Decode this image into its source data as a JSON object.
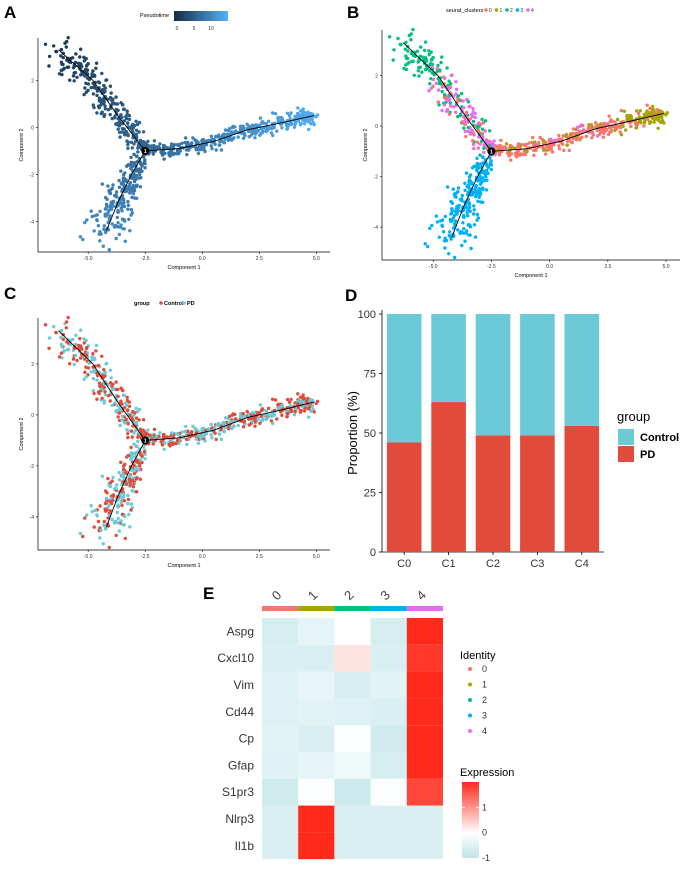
{
  "colors": {
    "pseudotime_low": "#132b43",
    "pseudotime_high": "#56b1f7",
    "clusters": [
      "#f8766d",
      "#a3a500",
      "#00bf7d",
      "#00b0f6",
      "#e76bf3"
    ],
    "control": "#6ccad6",
    "pd": "#e04b3b",
    "heat_low": "#bde3e8",
    "heat_mid": "#ffffff",
    "heat_high": "#ff2a1a"
  },
  "chart_data": [
    {
      "id": "A",
      "type": "scatter",
      "panel_label": "A",
      "title": "",
      "xlabel": "Component 1",
      "ylabel": "Component 2",
      "xlim": [
        -7.2,
        5.6
      ],
      "ylim": [
        -5.3,
        3.8
      ],
      "xticks": [
        -5.0,
        -2.5,
        0.0,
        2.5,
        5.0
      ],
      "xtick_labels": [
        "-5.0",
        "-2.5",
        "0.0",
        "2.5",
        "5.0"
      ],
      "yticks": [
        -4,
        -2,
        0,
        2
      ],
      "ytick_labels": [
        "-4",
        "-2",
        "0",
        "2"
      ],
      "trajectory_branches": [
        [
          [
            -6.3,
            3.3
          ],
          [
            -4.8,
            2.0
          ],
          [
            -3.7,
            0.5
          ],
          [
            -2.5,
            -1.0
          ]
        ],
        [
          [
            -2.5,
            -1.0
          ],
          [
            -1.0,
            -0.9
          ],
          [
            0.5,
            -0.6
          ],
          [
            2.0,
            -0.1
          ],
          [
            3.5,
            0.2
          ],
          [
            4.9,
            0.5
          ]
        ],
        [
          [
            -2.5,
            -1.0
          ],
          [
            -3.1,
            -2.0
          ],
          [
            -3.7,
            -3.2
          ],
          [
            -4.2,
            -4.4
          ]
        ]
      ],
      "branch_node": {
        "x": -2.5,
        "y": -1.0,
        "label": "1"
      },
      "color_by": "pseudotime",
      "legend": {
        "title": "Pseudotime",
        "tick_labels": [
          "0",
          "5",
          "10"
        ],
        "position": "top"
      }
    },
    {
      "id": "B",
      "type": "scatter",
      "panel_label": "B",
      "title": "",
      "xlabel": "Component 1",
      "ylabel": "Component 2",
      "xlim": [
        -7.2,
        5.6
      ],
      "ylim": [
        -5.3,
        3.8
      ],
      "xticks": [
        -5.0,
        -2.5,
        0.0,
        2.5,
        5.0
      ],
      "xtick_labels": [
        "-5.0",
        "-2.5",
        "0.0",
        "2.5",
        "5.0"
      ],
      "yticks": [
        -4,
        -2,
        0,
        2
      ],
      "ytick_labels": [
        "-4",
        "-2",
        "0",
        "2"
      ],
      "branch_node": {
        "x": -2.5,
        "y": -1.0,
        "label": "1"
      },
      "color_by": "seurat_clusters",
      "legend": {
        "title": "seurat_clusters",
        "entries": [
          "0",
          "1",
          "2",
          "3",
          "4"
        ],
        "position": "top"
      }
    },
    {
      "id": "C",
      "type": "scatter",
      "panel_label": "C",
      "title": "",
      "xlabel": "Component 1",
      "ylabel": "Component 2",
      "xlim": [
        -7.2,
        5.6
      ],
      "ylim": [
        -5.3,
        3.8
      ],
      "xticks": [
        -5.0,
        -2.5,
        0.0,
        2.5,
        5.0
      ],
      "xtick_labels": [
        "-5.0",
        "-2.5",
        "0.0",
        "2.5",
        "5.0"
      ],
      "yticks": [
        -4,
        -2,
        0,
        2
      ],
      "ytick_labels": [
        "-4",
        "-2",
        "0",
        "2"
      ],
      "branch_node": {
        "x": -2.5,
        "y": -1.0,
        "label": "1"
      },
      "color_by": "group",
      "legend": {
        "title": "group",
        "entries": [
          "Control",
          "PD"
        ],
        "position": "top"
      }
    },
    {
      "id": "D",
      "type": "bar",
      "stacked": true,
      "panel_label": "D",
      "title": "",
      "xlabel": "",
      "ylabel": "Proportion (%)",
      "ylim": [
        0,
        100
      ],
      "yticks": [
        0,
        25,
        50,
        75,
        100
      ],
      "categories": [
        "C0",
        "C1",
        "C2",
        "C3",
        "C4"
      ],
      "series": [
        {
          "name": "PD",
          "values": [
            46,
            63,
            49,
            49,
            53
          ]
        },
        {
          "name": "Control",
          "values": [
            54,
            37,
            51,
            51,
            47
          ]
        }
      ],
      "legend": {
        "title": "group",
        "entries": [
          "Control",
          "PD"
        ],
        "position": "right"
      }
    },
    {
      "id": "E",
      "type": "heatmap",
      "panel_label": "E",
      "title": "",
      "columns": [
        "0",
        "1",
        "2",
        "3",
        "4"
      ],
      "rows": [
        "Aspg",
        "Cxcl10",
        "Vim",
        "Cd44",
        "Cp",
        "Gfap",
        "S1pr3",
        "Nlrp3",
        "Il1b"
      ],
      "values": [
        [
          -0.55,
          -0.35,
          0.0,
          -0.55,
          1.6
        ],
        [
          -0.5,
          -0.5,
          0.2,
          -0.5,
          1.4
        ],
        [
          -0.45,
          -0.3,
          -0.55,
          -0.4,
          2.0
        ],
        [
          -0.45,
          -0.4,
          -0.45,
          -0.5,
          2.0
        ],
        [
          -0.4,
          -0.5,
          -0.05,
          -0.65,
          1.7
        ],
        [
          -0.45,
          -0.35,
          -0.2,
          -0.55,
          1.9
        ],
        [
          -0.65,
          -0.05,
          -0.7,
          -0.05,
          1.3
        ],
        [
          -0.5,
          2.0,
          -0.5,
          -0.5,
          -0.5
        ],
        [
          -0.5,
          2.0,
          -0.5,
          -0.5,
          -0.5
        ]
      ],
      "legend_identity": {
        "title": "Identity",
        "entries": [
          "0",
          "1",
          "2",
          "3",
          "4"
        ]
      },
      "legend_expression": {
        "title": "Expression",
        "tick_labels": [
          "1",
          "0",
          "-1"
        ],
        "range": [
          -1,
          2
        ]
      }
    }
  ]
}
